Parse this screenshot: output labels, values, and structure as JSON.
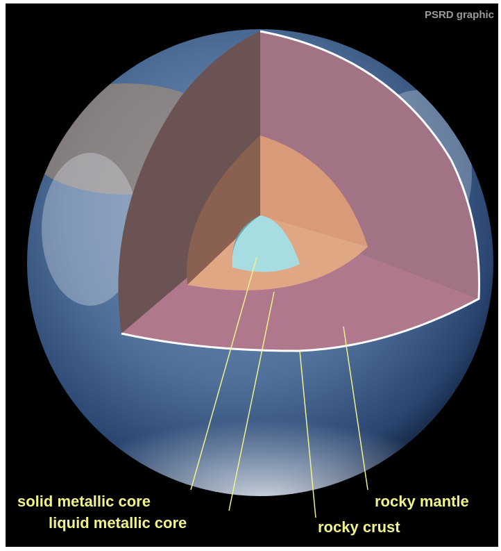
{
  "credit": "PSRD graphic",
  "labels": [
    "solid metallic core",
    "liquid metallic core",
    "rocky crust",
    "rocky mantle"
  ]
}
